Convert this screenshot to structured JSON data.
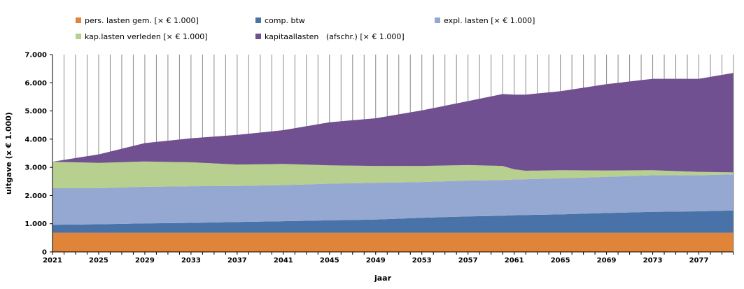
{
  "chart_data": {
    "type": "area",
    "stacked": true,
    "xlabel": "jaar",
    "ylabel": "uitgave (x € 1.000)",
    "ylim": [
      0,
      7000
    ],
    "yticks": [
      0,
      1000,
      2000,
      3000,
      4000,
      5000,
      6000,
      7000
    ],
    "ytick_labels": [
      "0",
      "1.000",
      "2.000",
      "3.000",
      "4.000",
      "5.000",
      "6.000",
      "7.000"
    ],
    "xlim": [
      2021,
      2080
    ],
    "xtick_labels": [
      "2021",
      "2025",
      "2029",
      "2033",
      "2037",
      "2041",
      "2045",
      "2049",
      "2053",
      "2057",
      "2061",
      "2065",
      "2069",
      "2073",
      "2077"
    ],
    "grid": "vertical",
    "legend_position": "top",
    "x": [
      2021,
      2025,
      2029,
      2033,
      2037,
      2041,
      2045,
      2049,
      2053,
      2057,
      2060,
      2061,
      2062,
      2065,
      2069,
      2073,
      2077,
      2080
    ],
    "series": [
      {
        "name": "pers. lasten gem. [× € 1.000]",
        "color": "#e0843a",
        "values": [
          680,
          680,
          680,
          680,
          680,
          680,
          680,
          680,
          680,
          680,
          680,
          680,
          680,
          680,
          680,
          680,
          680,
          680
        ]
      },
      {
        "name": "comp. btw",
        "color": "#4872a8",
        "values": [
          280,
          300,
          330,
          350,
          380,
          410,
          440,
          470,
          530,
          580,
          600,
          620,
          630,
          650,
          700,
          740,
          760,
          790
        ]
      },
      {
        "name": "expl. lasten [× € 1.000]",
        "color": "#94a8d2",
        "values": [
          1300,
          1280,
          1300,
          1300,
          1280,
          1280,
          1300,
          1300,
          1270,
          1270,
          1270,
          1270,
          1270,
          1280,
          1280,
          1300,
          1280,
          1280
        ]
      },
      {
        "name": "kap.lasten verleden [× € 1.000]",
        "color": "#b7cf8f",
        "values": [
          940,
          900,
          900,
          850,
          760,
          750,
          650,
          600,
          570,
          550,
          500,
          360,
          300,
          290,
          230,
          180,
          120,
          70
        ]
      },
      {
        "name": "kapitaallasten   (afschr.) [× € 1.000]",
        "color": "#705090",
        "values": [
          0,
          300,
          650,
          850,
          1050,
          1200,
          1530,
          1690,
          1970,
          2270,
          2550,
          2650,
          2700,
          2800,
          3060,
          3240,
          3300,
          3530
        ]
      }
    ]
  }
}
